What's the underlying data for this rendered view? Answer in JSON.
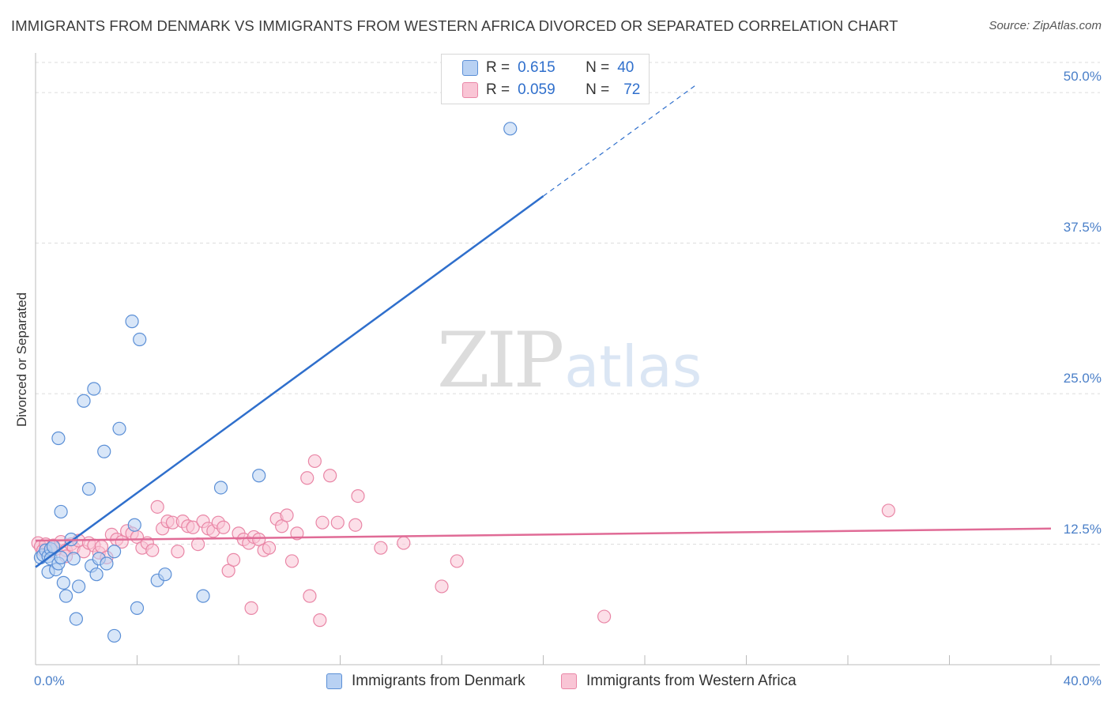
{
  "header": {
    "title": "IMMIGRANTS FROM DENMARK VS IMMIGRANTS FROM WESTERN AFRICA DIVORCED OR SEPARATED CORRELATION CHART",
    "source": "Source: ZipAtlas.com"
  },
  "watermark": {
    "part1": "ZIP",
    "part2": "atlas"
  },
  "legend": {
    "denmark": {
      "r_label": "R =",
      "r_value": "0.615",
      "n_label": "N =",
      "n_value": "40"
    },
    "wafrica": {
      "r_label": "R =",
      "r_value": "0.059",
      "n_label": "N =",
      "n_value": "72"
    }
  },
  "axis": {
    "ylabel": "Divorced or Separated",
    "y_ticks": [
      "12.5%",
      "25.0%",
      "37.5%",
      "50.0%"
    ],
    "x_min_label": "0.0%",
    "x_max_label": "40.0%"
  },
  "colors": {
    "denmark_fill": "#b8d1f3",
    "denmark_stroke": "#5b8fd6",
    "denmark_line": "#2f6fcc",
    "wafrica_fill": "#f9c5d5",
    "wafrica_stroke": "#e986a6",
    "wafrica_line": "#e06b96",
    "grid": "#dcdcdc",
    "tick_text": "#4a7fc8"
  },
  "chart_data": {
    "type": "scatter",
    "title": "IMMIGRANTS FROM DENMARK VS IMMIGRANTS FROM WESTERN AFRICA DIVORCED OR SEPARATED CORRELATION CHART",
    "xlabel": "",
    "ylabel": "Divorced or Separated",
    "xlim": [
      0,
      40
    ],
    "ylim": [
      2.5,
      52.5
    ],
    "y_gridlines": [
      12.5,
      25.0,
      37.5,
      50.0
    ],
    "x_tick_labels": [
      "0.0%",
      "40.0%"
    ],
    "grid": true,
    "legend_position": "top-center",
    "series": [
      {
        "name": "Immigrants from Denmark",
        "R": 0.615,
        "N": 40,
        "trend": {
          "x0": 0,
          "y0": 10.6,
          "x1": 20,
          "y1": 41.4,
          "dashed_to_x": 26,
          "dashed_to_y": 50.6
        },
        "points": [
          [
            0.2,
            11.4
          ],
          [
            0.3,
            11.6
          ],
          [
            0.4,
            12.0
          ],
          [
            0.5,
            11.5
          ],
          [
            0.6,
            12.1
          ],
          [
            0.5,
            10.2
          ],
          [
            0.6,
            11.3
          ],
          [
            0.7,
            12.3
          ],
          [
            0.8,
            10.4
          ],
          [
            0.9,
            10.9
          ],
          [
            1.0,
            11.4
          ],
          [
            1.1,
            9.3
          ],
          [
            1.2,
            8.2
          ],
          [
            1.4,
            12.9
          ],
          [
            1.5,
            11.3
          ],
          [
            1.6,
            6.3
          ],
          [
            1.7,
            9.0
          ],
          [
            1.9,
            24.4
          ],
          [
            2.1,
            17.1
          ],
          [
            2.2,
            10.7
          ],
          [
            2.3,
            25.4
          ],
          [
            2.4,
            10.0
          ],
          [
            2.5,
            11.3
          ],
          [
            2.7,
            20.2
          ],
          [
            2.8,
            10.9
          ],
          [
            3.1,
            11.9
          ],
          [
            3.1,
            4.9
          ],
          [
            3.3,
            22.1
          ],
          [
            3.8,
            31.0
          ],
          [
            3.9,
            14.1
          ],
          [
            4.0,
            7.2
          ],
          [
            4.1,
            29.5
          ],
          [
            4.8,
            9.5
          ],
          [
            5.1,
            10.0
          ],
          [
            6.6,
            8.2
          ],
          [
            7.3,
            17.2
          ],
          [
            8.8,
            18.2
          ],
          [
            18.7,
            47.0
          ],
          [
            1.0,
            15.2
          ],
          [
            0.9,
            21.3
          ]
        ]
      },
      {
        "name": "Immigrants from Western Africa",
        "R": 0.059,
        "N": 72,
        "trend": {
          "x0": 0,
          "y0": 12.8,
          "x1": 40,
          "y1": 13.8
        },
        "points": [
          [
            0.1,
            12.6
          ],
          [
            0.2,
            12.3
          ],
          [
            0.3,
            12.0
          ],
          [
            0.4,
            12.5
          ],
          [
            0.6,
            11.9
          ],
          [
            0.7,
            12.4
          ],
          [
            0.8,
            12.1
          ],
          [
            1.0,
            12.7
          ],
          [
            1.2,
            12.0
          ],
          [
            1.4,
            12.5
          ],
          [
            1.5,
            12.2
          ],
          [
            1.7,
            12.8
          ],
          [
            1.9,
            11.9
          ],
          [
            2.1,
            12.6
          ],
          [
            2.3,
            12.4
          ],
          [
            2.5,
            11.8
          ],
          [
            2.6,
            12.3
          ],
          [
            2.8,
            11.4
          ],
          [
            3.0,
            13.3
          ],
          [
            3.2,
            12.9
          ],
          [
            3.4,
            12.7
          ],
          [
            3.6,
            13.6
          ],
          [
            3.8,
            13.4
          ],
          [
            4.0,
            13.1
          ],
          [
            4.2,
            12.2
          ],
          [
            4.4,
            12.6
          ],
          [
            4.6,
            12.0
          ],
          [
            4.8,
            15.6
          ],
          [
            5.0,
            13.8
          ],
          [
            5.2,
            14.4
          ],
          [
            5.4,
            14.3
          ],
          [
            5.6,
            11.9
          ],
          [
            5.8,
            14.4
          ],
          [
            6.0,
            14.0
          ],
          [
            6.2,
            13.9
          ],
          [
            6.4,
            12.5
          ],
          [
            6.6,
            14.4
          ],
          [
            6.8,
            13.8
          ],
          [
            7.0,
            13.6
          ],
          [
            7.2,
            14.3
          ],
          [
            7.4,
            13.9
          ],
          [
            7.6,
            10.3
          ],
          [
            7.8,
            11.2
          ],
          [
            8.0,
            13.4
          ],
          [
            8.2,
            12.9
          ],
          [
            8.4,
            12.6
          ],
          [
            8.6,
            13.1
          ],
          [
            8.8,
            12.9
          ],
          [
            9.0,
            12.0
          ],
          [
            9.2,
            12.2
          ],
          [
            9.5,
            14.6
          ],
          [
            9.7,
            14.0
          ],
          [
            9.9,
            14.9
          ],
          [
            10.1,
            11.1
          ],
          [
            10.3,
            13.4
          ],
          [
            10.7,
            18.0
          ],
          [
            11.0,
            19.4
          ],
          [
            11.3,
            14.3
          ],
          [
            11.6,
            18.2
          ],
          [
            11.9,
            14.3
          ],
          [
            12.6,
            14.1
          ],
          [
            12.7,
            16.5
          ],
          [
            13.6,
            12.2
          ],
          [
            14.5,
            12.6
          ],
          [
            16.0,
            9.0
          ],
          [
            16.6,
            11.1
          ],
          [
            8.5,
            7.2
          ],
          [
            10.8,
            8.2
          ],
          [
            11.2,
            6.2
          ],
          [
            22.4,
            6.5
          ],
          [
            33.6,
            15.3
          ],
          [
            1.2,
            11.5
          ]
        ]
      }
    ]
  },
  "bottom_legend": {
    "denmark_label": "Immigrants from Denmark",
    "wafrica_label": "Immigrants from Western Africa"
  }
}
